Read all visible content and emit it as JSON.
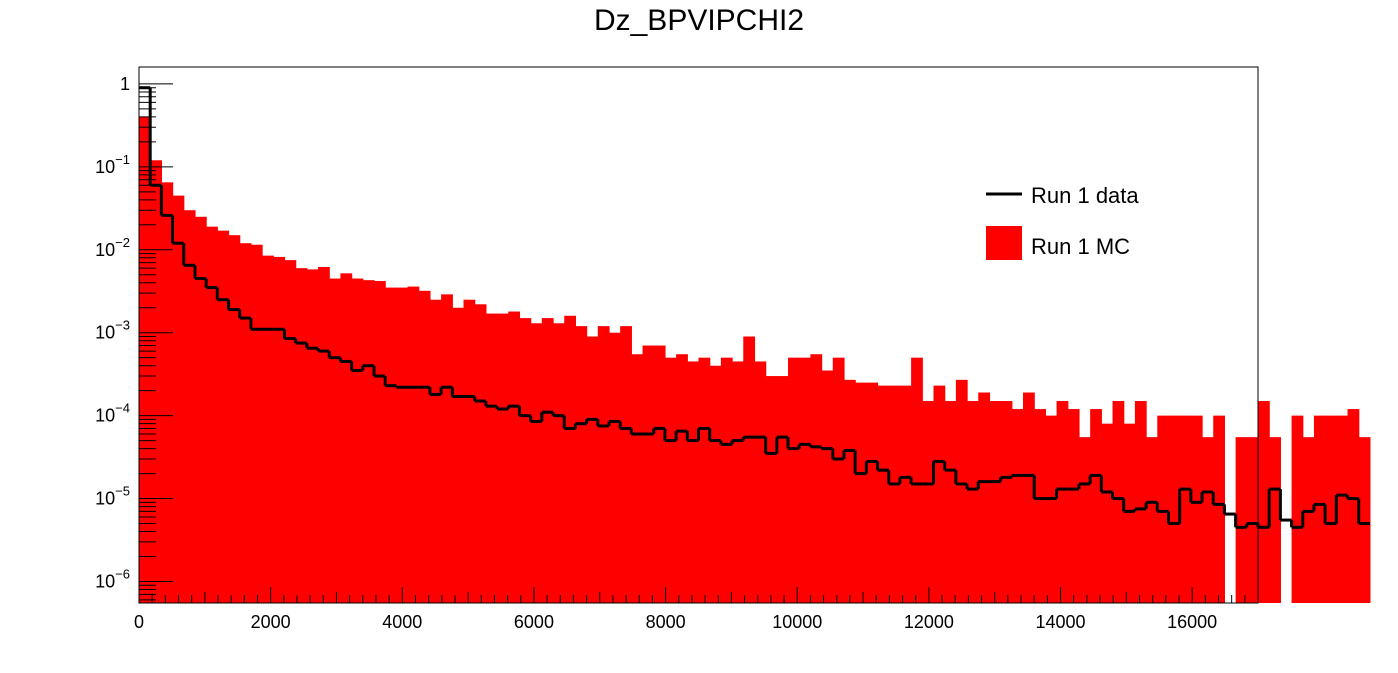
{
  "chart_data": {
    "type": "histogram",
    "title": "Dz_BPVIPCHI2",
    "xlabel": "",
    "ylabel": "",
    "xlim": [
      0,
      17000
    ],
    "ylim": [
      5.5e-07,
      1.6
    ],
    "yscale": "log",
    "grid": false,
    "legend_position": "top-right",
    "bin_width": 170,
    "x_ticks": [
      "0",
      "2000",
      "4000",
      "6000",
      "8000",
      "10000",
      "12000",
      "14000",
      "16000"
    ],
    "x_tick_values": [
      0,
      2000,
      4000,
      6000,
      8000,
      10000,
      12000,
      14000,
      16000
    ],
    "y_ticks": [
      {
        "base": "1",
        "exp": "",
        "value": 1
      },
      {
        "base": "10",
        "exp": "−1",
        "value": 0.1
      },
      {
        "base": "10",
        "exp": "−2",
        "value": 0.01
      },
      {
        "base": "10",
        "exp": "−3",
        "value": 0.001
      },
      {
        "base": "10",
        "exp": "−4",
        "value": 0.0001
      },
      {
        "base": "10",
        "exp": "−5",
        "value": 1e-05
      },
      {
        "base": "10",
        "exp": "−6",
        "value": 1e-06
      }
    ],
    "series": [
      {
        "name": "Run 1 MC",
        "style": "filled",
        "color": "#ff0000",
        "values": [
          0.4,
          0.12,
          0.065,
          0.045,
          0.03,
          0.025,
          0.019,
          0.017,
          0.015,
          0.012,
          0.0115,
          0.0085,
          0.0082,
          0.0075,
          0.006,
          0.0058,
          0.0062,
          0.0045,
          0.0052,
          0.0045,
          0.0043,
          0.0042,
          0.0035,
          0.0035,
          0.0036,
          0.0032,
          0.0025,
          0.0029,
          0.002,
          0.0025,
          0.0022,
          0.0017,
          0.0017,
          0.0018,
          0.0015,
          0.0013,
          0.0015,
          0.0013,
          0.0016,
          0.0012,
          0.0009,
          0.0012,
          0.001,
          0.0012,
          0.00055,
          0.0007,
          0.0007,
          0.0005,
          0.00055,
          0.00045,
          0.0005,
          0.0004,
          0.0005,
          0.00045,
          0.0009,
          0.00045,
          0.0003,
          0.0003,
          0.0005,
          0.0005,
          0.00055,
          0.00035,
          0.0005,
          0.00027,
          0.00025,
          0.00025,
          0.00023,
          0.00023,
          0.00023,
          0.0005,
          0.00015,
          0.00023,
          0.00015,
          0.00027,
          0.00015,
          0.00019,
          0.00015,
          0.00015,
          0.00012,
          0.00019,
          0.00012,
          0.0001,
          0.00015,
          0.00012,
          5.5e-05,
          0.00012,
          8e-05,
          0.00015,
          8e-05,
          0.00015,
          5.5e-05,
          0.0001,
          0.0001,
          0.0001,
          0.0001,
          5.5e-05,
          0.0001,
          0,
          5.5e-05,
          5.5e-05,
          0.00015,
          5.5e-05,
          0,
          0.0001,
          5.5e-05,
          0.0001,
          0.0001,
          0.0001,
          0.00012,
          5.5e-05
        ]
      },
      {
        "name": "Run 1 data",
        "style": "step",
        "color": "#000000",
        "values": [
          0.9,
          0.06,
          0.026,
          0.012,
          0.0065,
          0.0045,
          0.0035,
          0.0025,
          0.0019,
          0.0015,
          0.0011,
          0.0011,
          0.0011,
          0.00085,
          0.00075,
          0.00065,
          0.0006,
          0.0005,
          0.00045,
          0.00035,
          0.0004,
          0.0003,
          0.00023,
          0.00022,
          0.00022,
          0.00022,
          0.00018,
          0.00022,
          0.00017,
          0.00017,
          0.00015,
          0.00013,
          0.00012,
          0.00013,
          0.0001,
          8.5e-05,
          0.00011,
          0.0001,
          7e-05,
          8e-05,
          9e-05,
          7.5e-05,
          8.5e-05,
          7e-05,
          6e-05,
          6e-05,
          7e-05,
          5e-05,
          6.5e-05,
          5e-05,
          7e-05,
          5e-05,
          4.5e-05,
          5e-05,
          5.5e-05,
          5.5e-05,
          3.5e-05,
          5.5e-05,
          4e-05,
          4.5e-05,
          4.2e-05,
          4e-05,
          3e-05,
          3.8e-05,
          2e-05,
          2.8e-05,
          2.2e-05,
          1.5e-05,
          1.8e-05,
          1.5e-05,
          1.5e-05,
          2.8e-05,
          2.2e-05,
          1.5e-05,
          1.3e-05,
          1.6e-05,
          1.6e-05,
          1.8e-05,
          1.9e-05,
          1.9e-05,
          1e-05,
          1e-05,
          1.3e-05,
          1.3e-05,
          1.5e-05,
          1.9e-05,
          1.2e-05,
          1e-05,
          7e-06,
          7.5e-06,
          9e-06,
          7e-06,
          5e-06,
          1.3e-05,
          9e-06,
          1.2e-05,
          8.5e-06,
          6.5e-06,
          4.5e-06,
          5e-06,
          4.5e-06,
          1.3e-05,
          5.5e-06,
          4.5e-06,
          7e-06,
          8.5e-06,
          5e-06,
          1.1e-05,
          1e-05,
          5e-06
        ]
      }
    ]
  },
  "legend": {
    "items": [
      {
        "label": "Run 1 data",
        "style": "line",
        "color": "#000000"
      },
      {
        "label": "Run 1 MC",
        "style": "box",
        "color": "#ff0000"
      }
    ]
  }
}
